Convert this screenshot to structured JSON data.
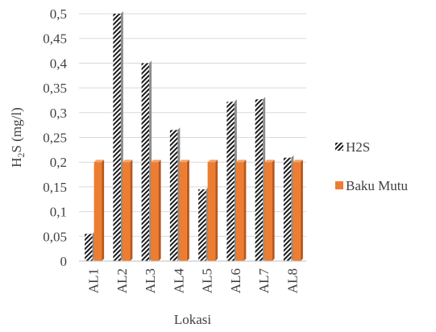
{
  "chart_data": {
    "type": "bar",
    "categories": [
      "AL1",
      "AL2",
      "AL3",
      "AL4",
      "AL5",
      "AL6",
      "AL7",
      "AL8"
    ],
    "series": [
      {
        "name": "H2S",
        "values": [
          0.055,
          0.5,
          0.4,
          0.265,
          0.145,
          0.322,
          0.327,
          0.209
        ],
        "pattern": "diagonal-hatch",
        "color": "#1a1a1a"
      },
      {
        "name": "Baku Mutu",
        "values": [
          0.2,
          0.2,
          0.2,
          0.2,
          0.2,
          0.2,
          0.2,
          0.2
        ],
        "color": "#ed7d31",
        "shadow_color": "#b8581c"
      }
    ],
    "yticks": [
      "0",
      "0,05",
      "0,1",
      "0,15",
      "0,2",
      "0,25",
      "0,3",
      "0,35",
      "0,4",
      "0,45",
      "0,5"
    ],
    "ylim": [
      0,
      0.5
    ],
    "xlabel": "Lokasi",
    "ylabel": {
      "base": "H",
      "sub": "2",
      "rest": "S (mg/l)"
    },
    "legend": {
      "entries": [
        "H2S",
        "Baku Mutu"
      ],
      "placement": "right"
    },
    "grid": true,
    "gridline_color": "#d9d9d9",
    "axis_color": "#bfbfbf"
  }
}
